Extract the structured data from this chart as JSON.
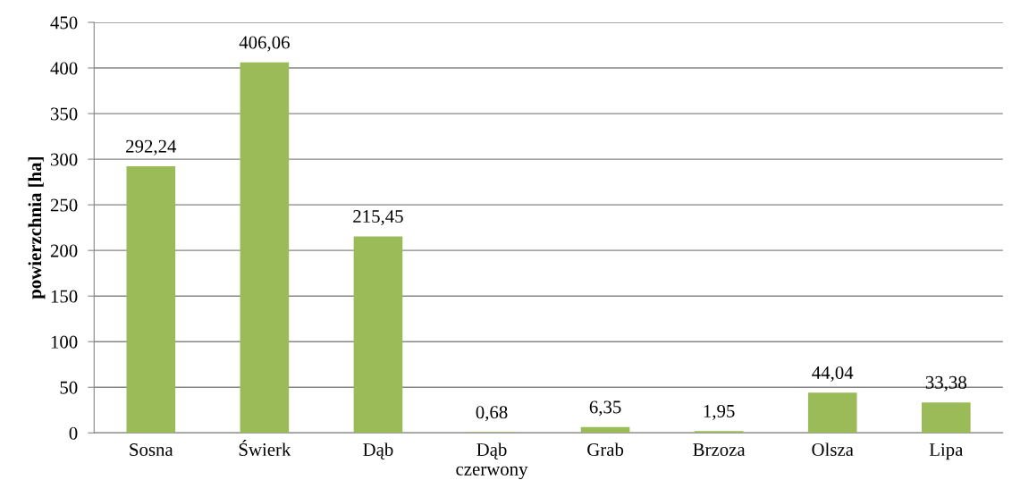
{
  "chart_data": {
    "type": "bar",
    "ylabel": "powierzchnia [ha]",
    "categories": [
      "Sosna",
      "Świerk",
      "Dąb",
      "Dąb\nczerwony",
      "Grab",
      "Brzoza",
      "Olsza",
      "Lipa"
    ],
    "values": [
      292.24,
      406.06,
      215.45,
      0.68,
      6.35,
      1.95,
      44.04,
      33.38
    ],
    "value_labels": [
      "292,24",
      "406,06",
      "215,45",
      "0,68",
      "6,35",
      "1,95",
      "44,04",
      "33,38"
    ],
    "color": "#9bbb59",
    "ylim": [
      0,
      450
    ],
    "yticks": [
      0,
      50,
      100,
      150,
      200,
      250,
      300,
      350,
      400,
      450
    ],
    "grid": "y",
    "legend": false
  }
}
